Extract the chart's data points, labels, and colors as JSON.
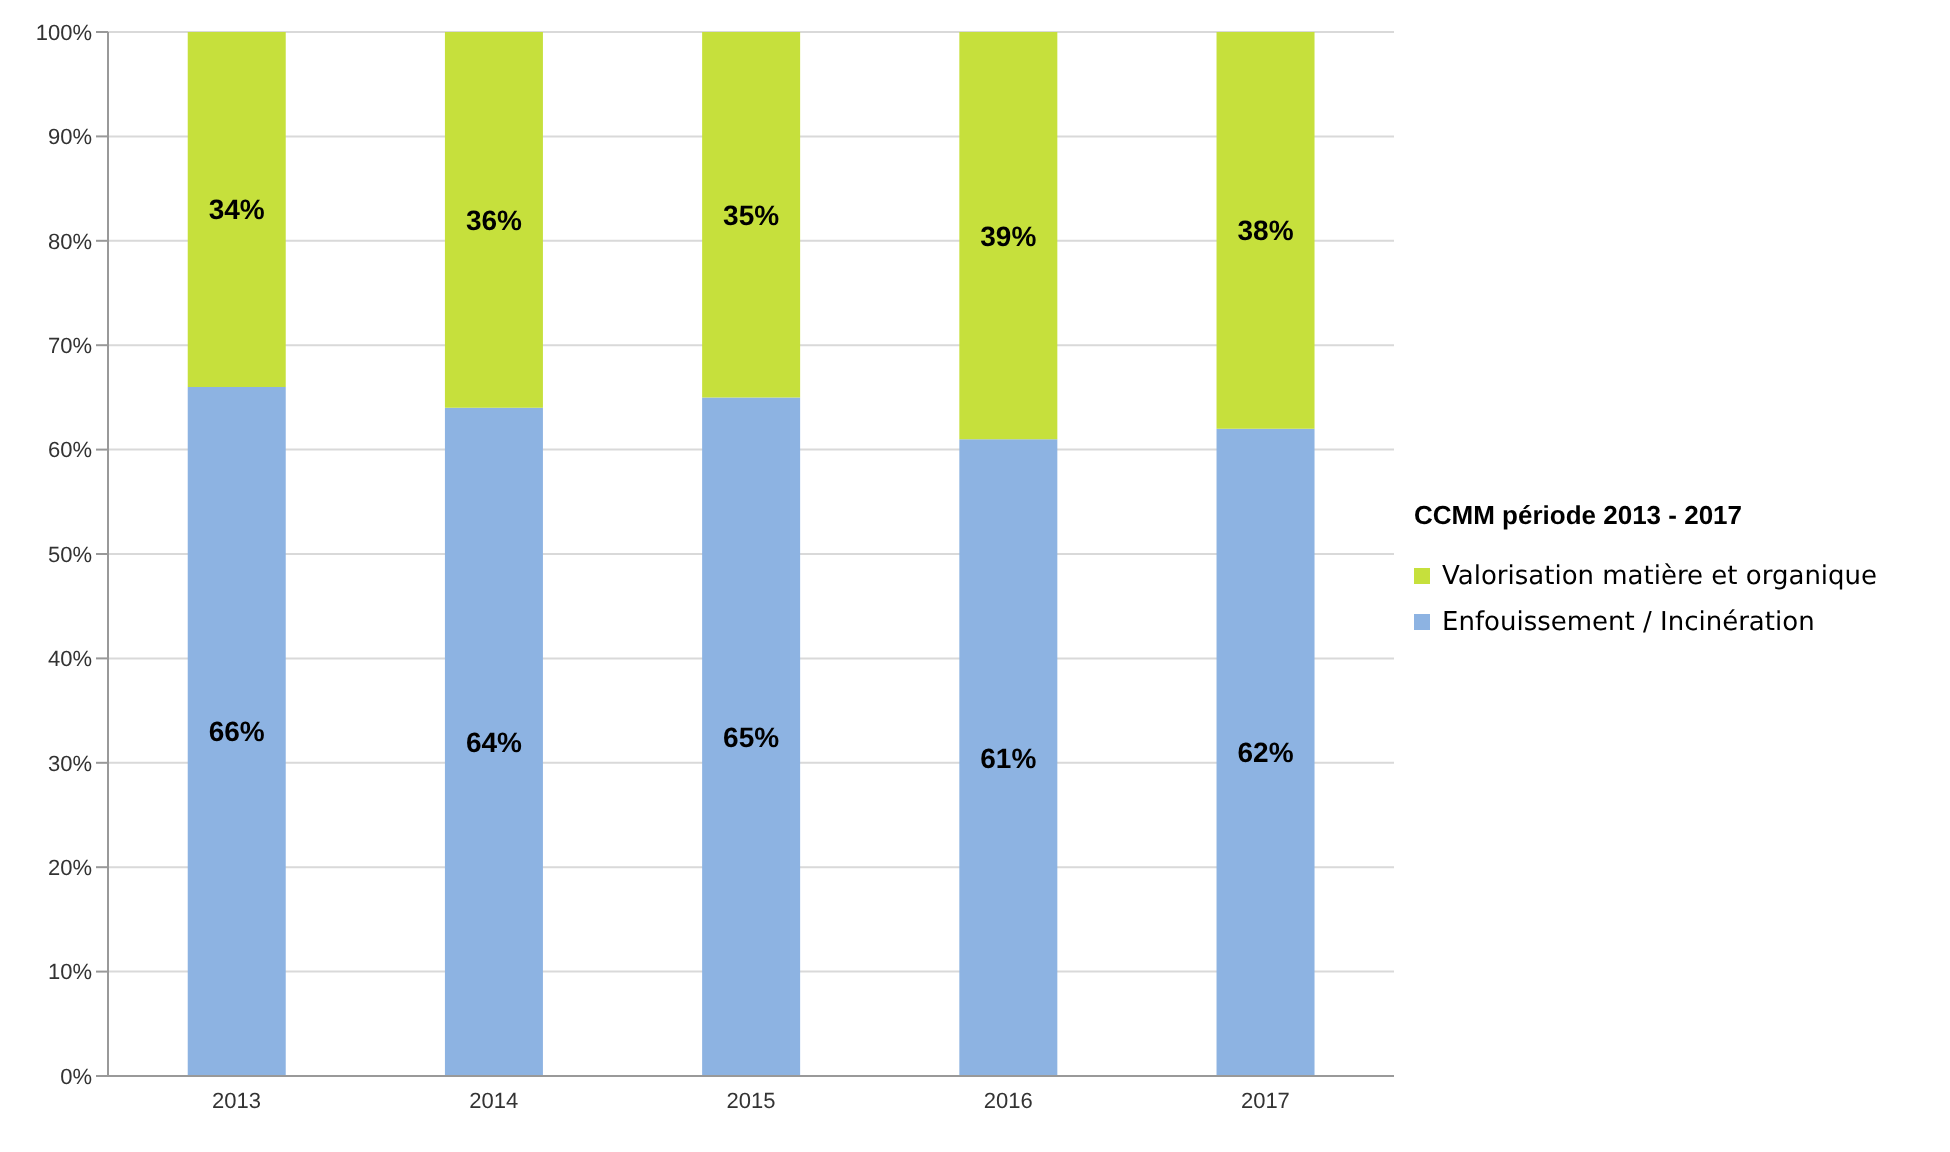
{
  "chart_data": {
    "type": "bar",
    "stacked": true,
    "legend_title": "CCMM période 2013 - 2017",
    "categories": [
      "2013",
      "2014",
      "2015",
      "2016",
      "2017"
    ],
    "series": [
      {
        "name": "Enfouissement / Incinération",
        "color": "#8db3e2",
        "values": [
          66,
          64,
          65,
          61,
          62
        ],
        "value_labels": [
          "66%",
          "64%",
          "65%",
          "61%",
          "62%"
        ]
      },
      {
        "name": "Valorisation matière et organique",
        "color": "#c6e03c",
        "values": [
          34,
          36,
          35,
          39,
          38
        ],
        "value_labels": [
          "34%",
          "36%",
          "35%",
          "39%",
          "38%"
        ]
      }
    ],
    "ylim": [
      0,
      100
    ],
    "yticks": [
      {
        "value": 0,
        "label": "0%"
      },
      {
        "value": 10,
        "label": "10%"
      },
      {
        "value": 20,
        "label": "20%"
      },
      {
        "value": 30,
        "label": "30%"
      },
      {
        "value": 40,
        "label": "40%"
      },
      {
        "value": 50,
        "label": "50%"
      },
      {
        "value": 60,
        "label": "60%"
      },
      {
        "value": 70,
        "label": "70%"
      },
      {
        "value": 80,
        "label": "80%"
      },
      {
        "value": 90,
        "label": "90%"
      },
      {
        "value": 100,
        "label": "100%"
      }
    ],
    "grid": "y",
    "legend": "right"
  }
}
